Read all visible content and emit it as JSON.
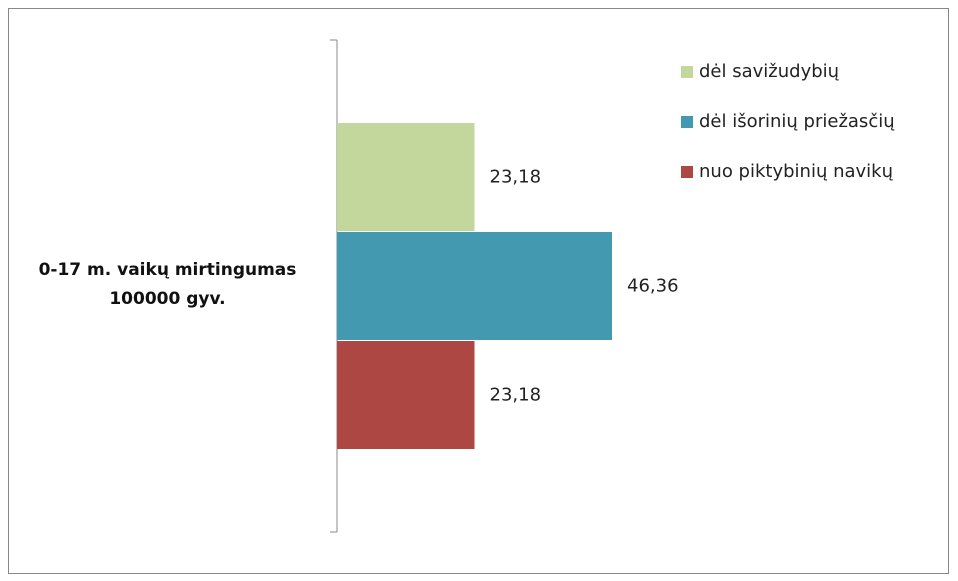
{
  "chart_data": {
    "type": "hbar",
    "categories": [
      "0-17 m. vaikų mirtingumas\n100000 gyv."
    ],
    "series": [
      {
        "name": "dėl savižudybių",
        "color": "#c3d69b",
        "values": [
          23.18
        ],
        "value_labels": [
          "23,18"
        ]
      },
      {
        "name": "dėl išorinių priežasčių",
        "color": "#4299b0",
        "values": [
          46.36
        ],
        "value_labels": [
          "46,36"
        ]
      },
      {
        "name": "nuo piktybinių navikų",
        "color": "#ac4744",
        "values": [
          23.18
        ],
        "value_labels": [
          "23,18"
        ]
      }
    ],
    "legend": "top-right"
  }
}
